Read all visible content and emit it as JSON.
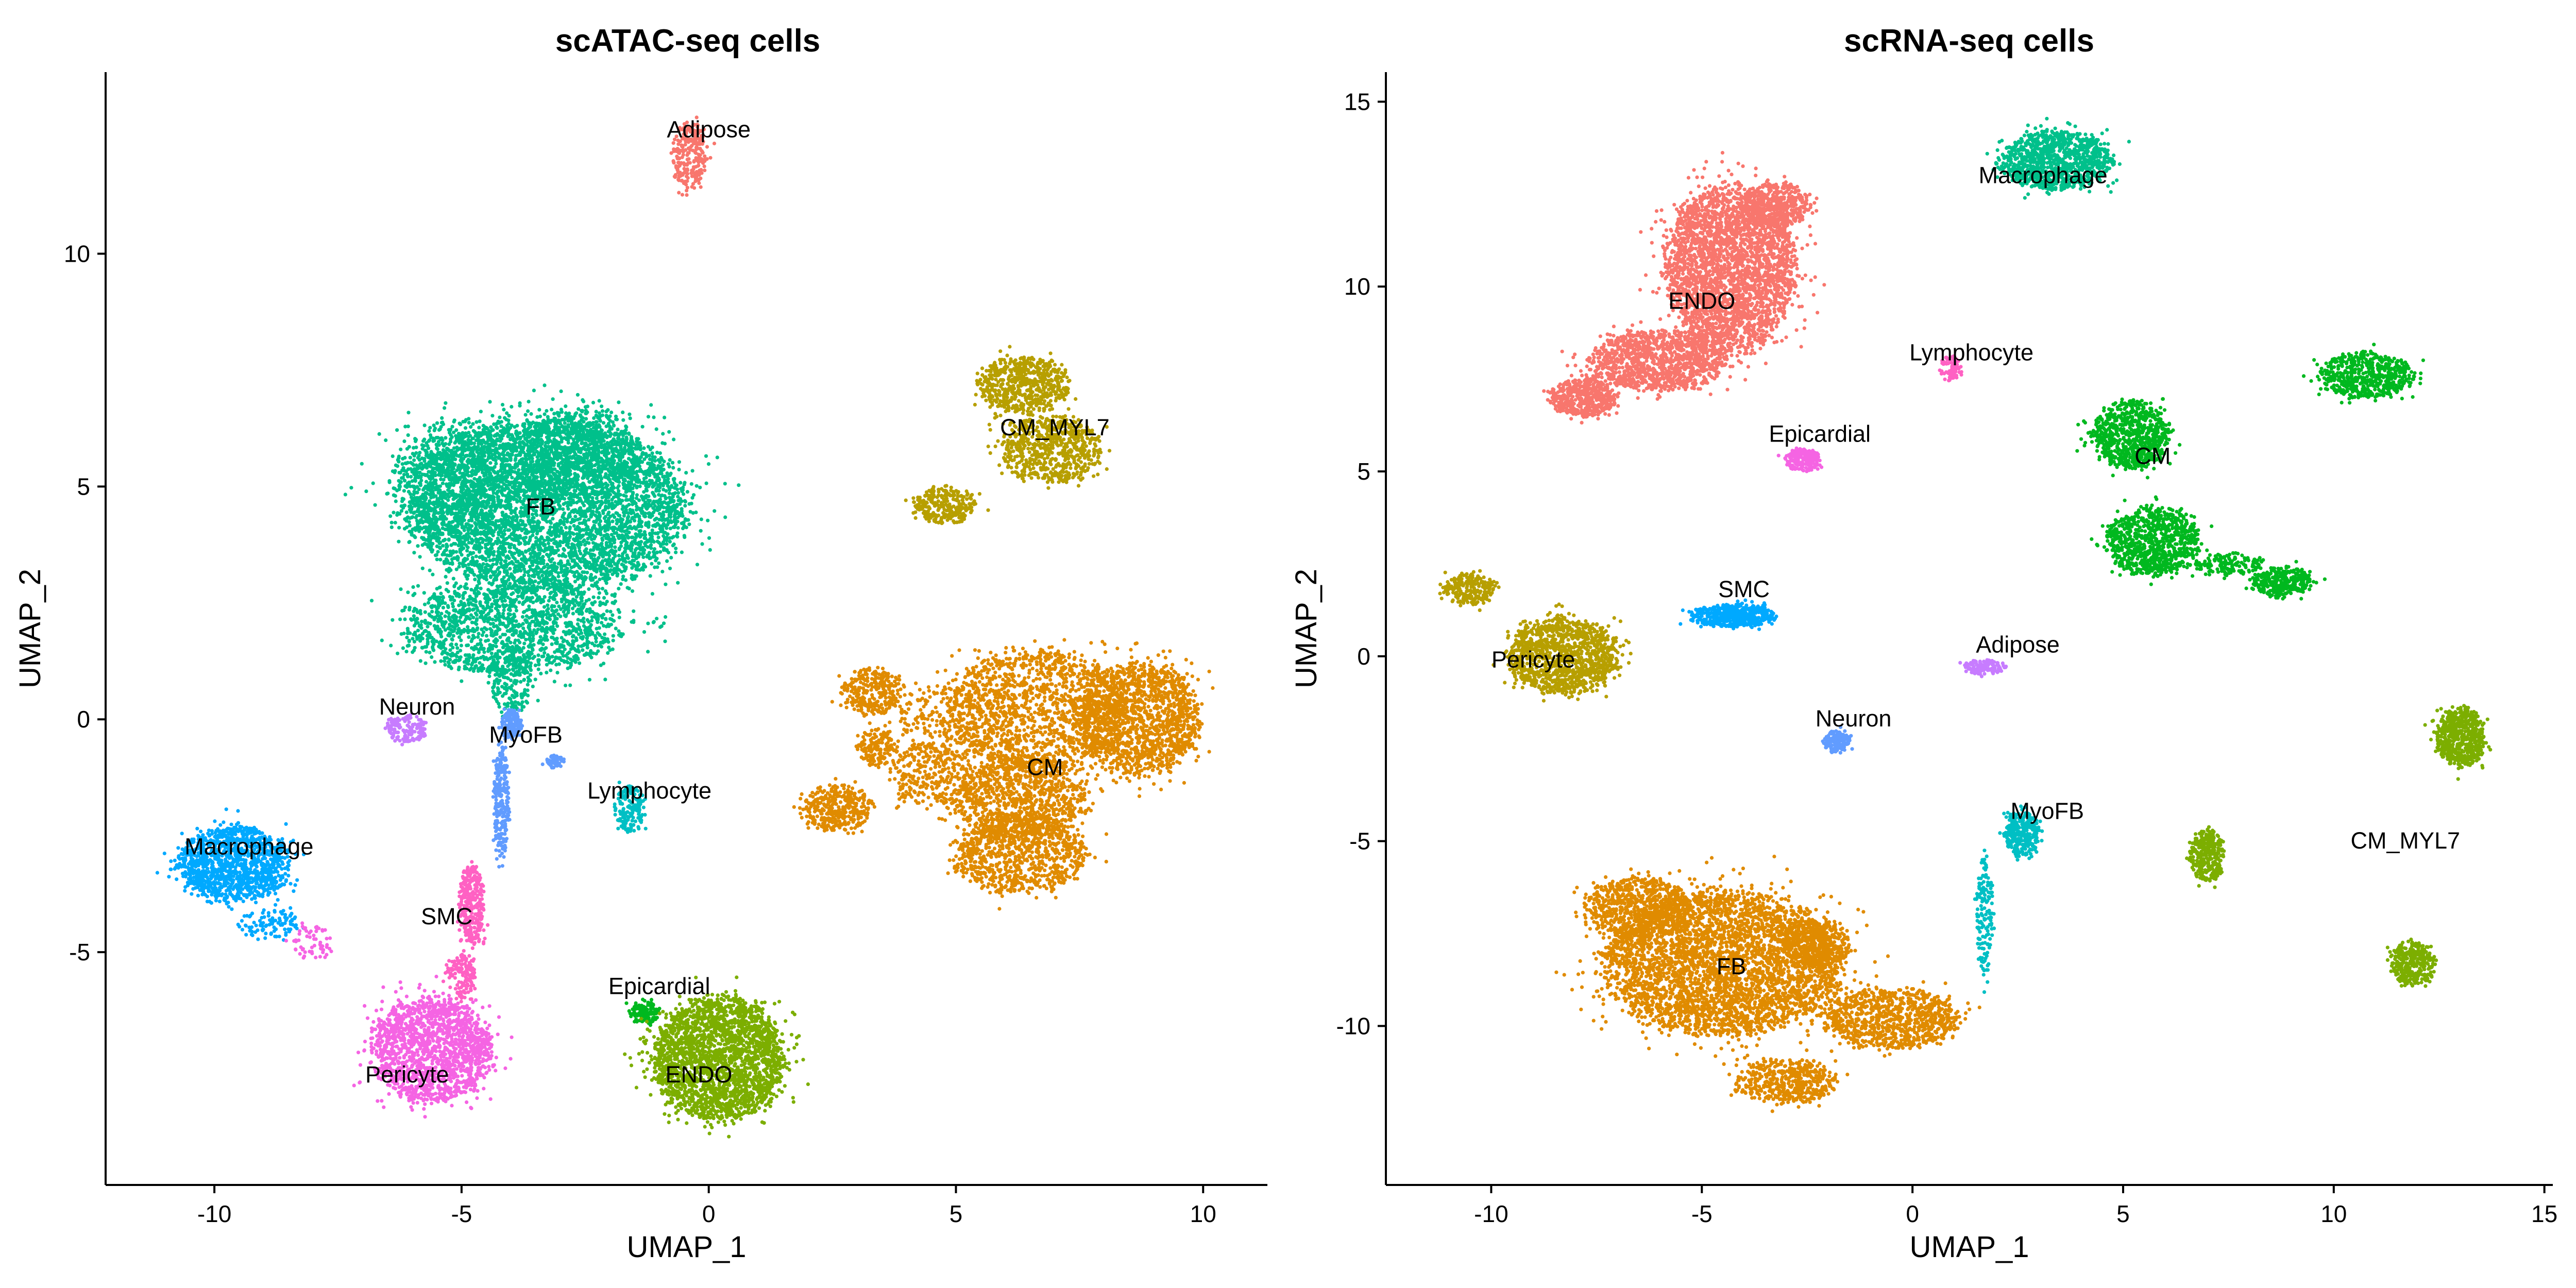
{
  "chart_data": [
    {
      "type": "scatter",
      "title": "scATAC-seq cells",
      "xlabel": "UMAP_1",
      "ylabel": "UMAP_2",
      "xlim": [
        -12.2,
        11.3
      ],
      "ylim": [
        -10.0,
        13.9
      ],
      "xticks": [
        -10,
        -5,
        0,
        5,
        10
      ],
      "yticks": [
        -5,
        0,
        5,
        10
      ],
      "grid": false,
      "legend": "none",
      "clusters": [
        {
          "name": "Adipose",
          "color": "#F8766D",
          "label_xy": [
            0.0,
            12.5
          ],
          "blobs": [
            [
              -0.4,
              12.1,
              0.35,
              0.7,
              250
            ]
          ]
        },
        {
          "name": "FB",
          "color": "#00C08B",
          "label_xy": [
            -3.4,
            4.4
          ],
          "blobs": [
            [
              -3.3,
              4.6,
              2.8,
              1.8,
              4800
            ],
            [
              -2.6,
              5.7,
              1.2,
              1.0,
              700
            ],
            [
              -4.0,
              2.0,
              2.2,
              1.0,
              1500
            ],
            [
              -4.8,
              5.2,
              1.6,
              1.2,
              800
            ],
            [
              -4.0,
              0.8,
              0.4,
              0.8,
              200
            ]
          ]
        },
        {
          "name": "CM_MYL7",
          "color": "#B79F00",
          "label_xy": [
            7.0,
            6.1
          ],
          "blobs": [
            [
              6.4,
              7.2,
              0.9,
              0.6,
              600
            ],
            [
              6.9,
              5.8,
              1.0,
              0.7,
              700
            ],
            [
              4.8,
              4.6,
              0.6,
              0.4,
              300
            ]
          ]
        },
        {
          "name": "CM",
          "color": "#E08B00",
          "label_xy": [
            6.8,
            -1.2
          ],
          "blobs": [
            [
              8.7,
              0.0,
              1.2,
              1.2,
              1500
            ],
            [
              6.6,
              0.2,
              1.8,
              1.3,
              1400
            ],
            [
              6.3,
              -1.7,
              1.3,
              0.9,
              1000
            ],
            [
              6.3,
              -2.9,
              1.3,
              0.8,
              900
            ],
            [
              3.3,
              0.6,
              0.6,
              0.5,
              300
            ],
            [
              3.4,
              -0.6,
              0.4,
              0.4,
              150
            ],
            [
              2.6,
              -1.9,
              0.7,
              0.5,
              350
            ],
            [
              4.5,
              -1.2,
              0.8,
              0.7,
              300
            ],
            [
              5.0,
              0.0,
              1.2,
              0.8,
              250
            ]
          ]
        },
        {
          "name": "Neuron",
          "color": "#C77CFF",
          "label_xy": [
            -5.9,
            0.1
          ],
          "blobs": [
            [
              -6.1,
              -0.2,
              0.4,
              0.3,
              150
            ]
          ]
        },
        {
          "name": "MyoFB",
          "color": "#619CFF",
          "label_xy": [
            -3.7,
            -0.5
          ],
          "blobs": [
            [
              -4.2,
              -1.8,
              0.15,
              1.2,
              250
            ],
            [
              -4.0,
              -0.1,
              0.2,
              0.3,
              150
            ],
            [
              -3.1,
              -0.9,
              0.2,
              0.15,
              50
            ]
          ]
        },
        {
          "name": "Lymphocyte",
          "color": "#00BFC4",
          "label_xy": [
            -1.2,
            -1.7
          ],
          "blobs": [
            [
              -1.6,
              -1.9,
              0.3,
              0.5,
              150
            ]
          ]
        },
        {
          "name": "Macrophage",
          "color": "#00A9FF",
          "label_xy": [
            -9.3,
            -2.9
          ],
          "blobs": [
            [
              -9.6,
              -3.1,
              1.1,
              0.8,
              1200
            ],
            [
              -8.9,
              -4.4,
              0.6,
              0.3,
              100
            ]
          ]
        },
        {
          "name": "SMC",
          "color": "#FF61C3",
          "label_xy": [
            -5.3,
            -4.4
          ],
          "blobs": [
            [
              -4.8,
              -4.0,
              0.25,
              0.9,
              300
            ],
            [
              -5.0,
              -5.5,
              0.3,
              0.5,
              150
            ]
          ]
        },
        {
          "name": "Pericyte",
          "color": "#F564E3",
          "label_xy": [
            -6.1,
            -7.8
          ],
          "blobs": [
            [
              -5.6,
              -7.1,
              1.2,
              1.1,
              1600
            ],
            [
              -8.0,
              -4.8,
              0.4,
              0.4,
              60
            ]
          ]
        },
        {
          "name": "Epicardial",
          "color": "#00B81F",
          "label_xy": [
            -1.0,
            -5.9
          ],
          "blobs": [
            [
              -1.3,
              -6.3,
              0.3,
              0.25,
              120
            ]
          ]
        },
        {
          "name": "ENDO",
          "color": "#7CAE00",
          "label_xy": [
            -0.2,
            -7.8
          ],
          "blobs": [
            [
              0.2,
              -7.3,
              1.3,
              1.3,
              2400
            ]
          ]
        }
      ]
    },
    {
      "type": "scatter",
      "title": "scRNA-seq cells",
      "xlabel": "UMAP_1",
      "ylabel": "UMAP_2",
      "xlim": [
        -12.5,
        15.2
      ],
      "ylim": [
        -14.3,
        15.8
      ],
      "xticks": [
        -10,
        -5,
        0,
        5,
        10,
        15
      ],
      "yticks": [
        -10,
        -5,
        0,
        5,
        10,
        15
      ],
      "grid": false,
      "legend": "none",
      "clusters": [
        {
          "name": "ENDO",
          "color": "#F8766D",
          "label_xy": [
            -5.0,
            9.4
          ],
          "blobs": [
            [
              -4.3,
              10.5,
              1.5,
              2.2,
              3000
            ],
            [
              -6.0,
              8.0,
              1.6,
              0.8,
              1200
            ],
            [
              -7.8,
              7.0,
              0.8,
              0.5,
              500
            ],
            [
              -3.2,
              12.2,
              0.8,
              0.6,
              400
            ]
          ]
        },
        {
          "name": "Macrophage",
          "color": "#00C08B",
          "label_xy": [
            3.1,
            12.8
          ],
          "blobs": [
            [
              3.4,
              13.4,
              1.3,
              0.8,
              1000
            ]
          ]
        },
        {
          "name": "Lymphocyte",
          "color": "#FF61C3",
          "label_xy": [
            1.4,
            8.0
          ],
          "blobs": [
            [
              0.9,
              7.8,
              0.25,
              0.3,
              80
            ]
          ]
        },
        {
          "name": "Epicardial",
          "color": "#F564E3",
          "label_xy": [
            -2.2,
            5.8
          ],
          "blobs": [
            [
              -2.6,
              5.3,
              0.4,
              0.3,
              200
            ]
          ]
        },
        {
          "name": "CM",
          "color": "#00B81F",
          "label_xy": [
            5.7,
            5.2
          ],
          "blobs": [
            [
              5.2,
              6.0,
              0.9,
              0.9,
              800
            ],
            [
              5.7,
              3.1,
              1.1,
              0.9,
              900
            ],
            [
              8.8,
              2.0,
              0.7,
              0.4,
              300
            ],
            [
              10.8,
              7.6,
              1.1,
              0.6,
              600
            ],
            [
              7.5,
              2.5,
              0.8,
              0.3,
              150
            ]
          ]
        },
        {
          "name": "SMC",
          "color": "#00A9FF",
          "label_xy": [
            -4.0,
            1.6
          ],
          "blobs": [
            [
              -4.3,
              1.1,
              1.0,
              0.3,
              500
            ]
          ]
        },
        {
          "name": "Pericyte",
          "color": "#B79F00",
          "label_xy": [
            -9.0,
            -0.3
          ],
          "blobs": [
            [
              -8.3,
              0.0,
              1.3,
              1.0,
              1200
            ],
            [
              -10.5,
              1.8,
              0.6,
              0.4,
              250
            ]
          ]
        },
        {
          "name": "Adipose",
          "color": "#C77CFF",
          "label_xy": [
            2.5,
            0.1
          ],
          "blobs": [
            [
              1.7,
              -0.3,
              0.5,
              0.2,
              120
            ]
          ]
        },
        {
          "name": "Neuron",
          "color": "#619CFF",
          "label_xy": [
            -1.4,
            -1.9
          ],
          "blobs": [
            [
              -1.8,
              -2.3,
              0.3,
              0.3,
              150
            ]
          ]
        },
        {
          "name": "MyoFB",
          "color": "#00BFC4",
          "label_xy": [
            3.2,
            -4.4
          ],
          "blobs": [
            [
              2.6,
              -4.8,
              0.4,
              0.6,
              300
            ],
            [
              1.7,
              -7.0,
              0.2,
              1.5,
              150
            ]
          ]
        },
        {
          "name": "FB",
          "color": "#E08B00",
          "label_xy": [
            -4.3,
            -8.6
          ],
          "blobs": [
            [
              -4.5,
              -8.3,
              2.8,
              1.9,
              3800
            ],
            [
              -0.5,
              -9.8,
              1.6,
              0.8,
              900
            ],
            [
              -6.5,
              -6.8,
              1.2,
              0.8,
              700
            ],
            [
              -2.3,
              -7.8,
              0.8,
              0.6,
              400
            ],
            [
              -3.0,
              -11.5,
              1.2,
              0.6,
              500
            ]
          ]
        },
        {
          "name": "CM_MYL7",
          "color": "#7CAE00",
          "label_xy": [
            11.7,
            -5.2
          ],
          "blobs": [
            [
              13.0,
              -2.2,
              0.6,
              0.8,
              600
            ],
            [
              7.0,
              -5.4,
              0.4,
              0.7,
              300
            ],
            [
              11.9,
              -8.3,
              0.5,
              0.6,
              350
            ]
          ]
        }
      ]
    }
  ]
}
